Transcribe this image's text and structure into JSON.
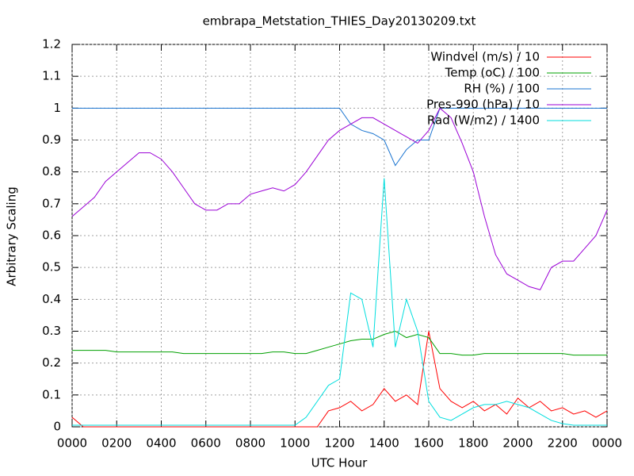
{
  "chart_data": {
    "type": "line",
    "title": "embrapa_Metstation_THIES_Day20130209.txt",
    "xlabel": "UTC Hour",
    "ylabel": "Arbitrary Scaling",
    "grid": true,
    "legend": "top-right",
    "xlim": [
      0,
      24
    ],
    "ylim": [
      0,
      1.2
    ],
    "xticks": [
      {
        "value": 0,
        "label": "0000"
      },
      {
        "value": 2,
        "label": "0200"
      },
      {
        "value": 4,
        "label": "0400"
      },
      {
        "value": 6,
        "label": "0600"
      },
      {
        "value": 8,
        "label": "0800"
      },
      {
        "value": 10,
        "label": "1000"
      },
      {
        "value": 12,
        "label": "1200"
      },
      {
        "value": 14,
        "label": "1400"
      },
      {
        "value": 16,
        "label": "1600"
      },
      {
        "value": 18,
        "label": "1800"
      },
      {
        "value": 20,
        "label": "2000"
      },
      {
        "value": 22,
        "label": "2200"
      },
      {
        "value": 24,
        "label": "0000"
      }
    ],
    "yticks": [
      0,
      0.1,
      0.2,
      0.3,
      0.4,
      0.5,
      0.6,
      0.7,
      0.8,
      0.9,
      1,
      1.1,
      1.2
    ],
    "x": [
      0,
      0.5,
      1,
      1.5,
      2,
      2.5,
      3,
      3.5,
      4,
      4.5,
      5,
      5.5,
      6,
      6.5,
      7,
      7.5,
      8,
      8.5,
      9,
      9.5,
      10,
      10.5,
      11,
      11.5,
      12,
      12.5,
      13,
      13.5,
      14,
      14.5,
      15,
      15.5,
      16,
      16.5,
      17,
      17.5,
      18,
      18.5,
      19,
      19.5,
      20,
      20.5,
      21,
      21.5,
      22,
      22.5,
      23,
      23.5,
      24
    ],
    "series": [
      {
        "name": "Windvel (m/s) / 10",
        "color": "#ff0000",
        "values": [
          0.03,
          0,
          0,
          0,
          0,
          0,
          0,
          0,
          0,
          0,
          0,
          0,
          0,
          0,
          0,
          0,
          0,
          0,
          0,
          0,
          0,
          0,
          0,
          0.05,
          0.06,
          0.08,
          0.05,
          0.07,
          0.12,
          0.08,
          0.1,
          0.07,
          0.3,
          0.12,
          0.08,
          0.06,
          0.08,
          0.05,
          0.07,
          0.04,
          0.09,
          0.06,
          0.08,
          0.05,
          0.06,
          0.04,
          0.05,
          0.03,
          0.05
        ]
      },
      {
        "name": "Temp (oC) / 100",
        "color": "#00a000",
        "values": [
          0.24,
          0.24,
          0.24,
          0.24,
          0.235,
          0.235,
          0.235,
          0.235,
          0.235,
          0.235,
          0.23,
          0.23,
          0.23,
          0.23,
          0.23,
          0.23,
          0.23,
          0.23,
          0.235,
          0.235,
          0.23,
          0.23,
          0.24,
          0.25,
          0.26,
          0.27,
          0.275,
          0.275,
          0.29,
          0.3,
          0.28,
          0.29,
          0.28,
          0.23,
          0.23,
          0.225,
          0.225,
          0.23,
          0.23,
          0.23,
          0.23,
          0.23,
          0.23,
          0.23,
          0.23,
          0.225,
          0.225,
          0.225,
          0.225
        ]
      },
      {
        "name": "RH (%) / 100",
        "color": "#1a74d0",
        "values": [
          1,
          1,
          1,
          1,
          1,
          1,
          1,
          1,
          1,
          1,
          1,
          1,
          1,
          1,
          1,
          1,
          1,
          1,
          1,
          1,
          1,
          1,
          1,
          1,
          1,
          0.95,
          0.93,
          0.92,
          0.9,
          0.82,
          0.87,
          0.9,
          0.9,
          1,
          1,
          1,
          1,
          1,
          1,
          1,
          1,
          1,
          1,
          1,
          1,
          1,
          1,
          1,
          1
        ]
      },
      {
        "name": "Pres-990 (hPa) / 10",
        "color": "#9b00d6",
        "values": [
          0.66,
          0.69,
          0.72,
          0.77,
          0.8,
          0.83,
          0.86,
          0.86,
          0.84,
          0.8,
          0.75,
          0.7,
          0.68,
          0.68,
          0.7,
          0.7,
          0.73,
          0.74,
          0.75,
          0.74,
          0.76,
          0.8,
          0.85,
          0.9,
          0.93,
          0.95,
          0.97,
          0.97,
          0.95,
          0.93,
          0.91,
          0.89,
          0.93,
          1.0,
          0.97,
          0.89,
          0.8,
          0.66,
          0.54,
          0.48,
          0.46,
          0.44,
          0.43,
          0.5,
          0.52,
          0.52,
          0.56,
          0.6,
          0.68
        ]
      },
      {
        "name": "Rad (W/m2) / 1400",
        "color": "#00dede",
        "values": [
          0.005,
          0.005,
          0.005,
          0.005,
          0.005,
          0.005,
          0.005,
          0.005,
          0.005,
          0.005,
          0.005,
          0.005,
          0.005,
          0.005,
          0.005,
          0.005,
          0.005,
          0.005,
          0.005,
          0.005,
          0.005,
          0.03,
          0.08,
          0.13,
          0.15,
          0.42,
          0.4,
          0.25,
          0.78,
          0.25,
          0.4,
          0.3,
          0.08,
          0.03,
          0.02,
          0.04,
          0.06,
          0.07,
          0.07,
          0.08,
          0.07,
          0.06,
          0.04,
          0.02,
          0.01,
          0.005,
          0.005,
          0.005,
          0.005
        ]
      }
    ]
  }
}
